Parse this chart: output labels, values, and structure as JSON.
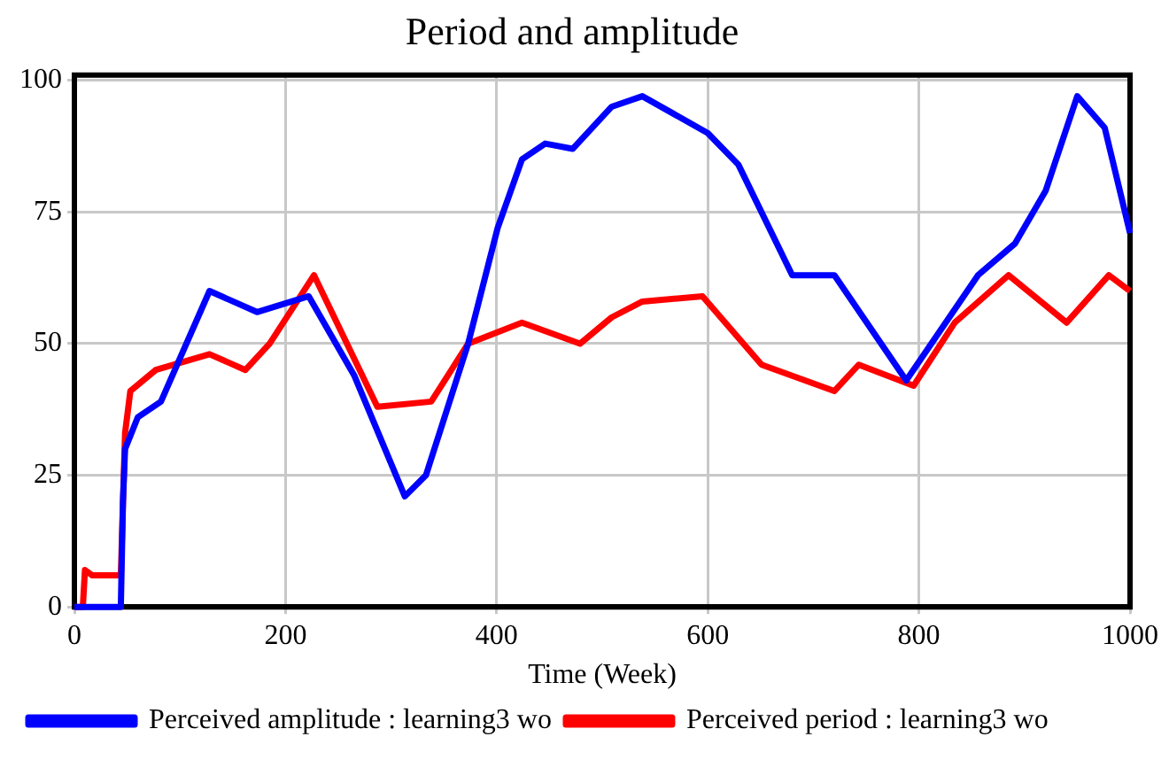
{
  "chart_data": {
    "type": "line",
    "title": "Period and amplitude",
    "xlabel": "Time (Week)",
    "xlim": [
      0,
      1000
    ],
    "xticks": [
      0,
      200,
      400,
      600,
      800,
      1000
    ],
    "ylim": [
      0,
      101
    ],
    "yticks": [
      0,
      25,
      50,
      75,
      100
    ],
    "grid": true,
    "legend": "bottom",
    "marker": "none",
    "line_style": "solid",
    "series": [
      {
        "name": "Perceived amplitude : learning3 wo",
        "color": "#0000ff",
        "x": [
          0,
          44,
          46,
          48,
          60,
          82,
          128,
          173,
          222,
          265,
          313,
          333,
          373,
          401,
          424,
          446,
          472,
          509,
          538,
          600,
          629,
          680,
          720,
          788,
          856,
          891,
          920,
          950,
          976,
          1000
        ],
        "values": [
          0,
          0,
          20,
          30,
          36,
          39,
          60,
          56,
          59,
          44,
          21,
          25,
          50,
          72,
          85,
          88,
          87,
          95,
          97,
          90,
          84,
          63,
          63,
          43,
          63,
          69,
          79,
          97,
          91,
          71
        ]
      },
      {
        "name": "Perceived period : learning3 wo",
        "color": "#ff0000",
        "x": [
          0,
          8,
          10,
          17,
          44,
          48,
          53,
          77,
          128,
          162,
          185,
          227,
          287,
          338,
          373,
          424,
          479,
          509,
          538,
          595,
          651,
          720,
          743,
          795,
          834,
          885,
          940,
          980,
          1000
        ],
        "values": [
          0,
          0,
          7,
          6,
          6,
          33,
          41,
          45,
          48,
          45,
          50,
          63,
          38,
          39,
          50,
          54,
          50,
          55,
          58,
          59,
          46,
          41,
          46,
          42,
          54,
          63,
          54,
          63,
          60
        ]
      }
    ]
  }
}
